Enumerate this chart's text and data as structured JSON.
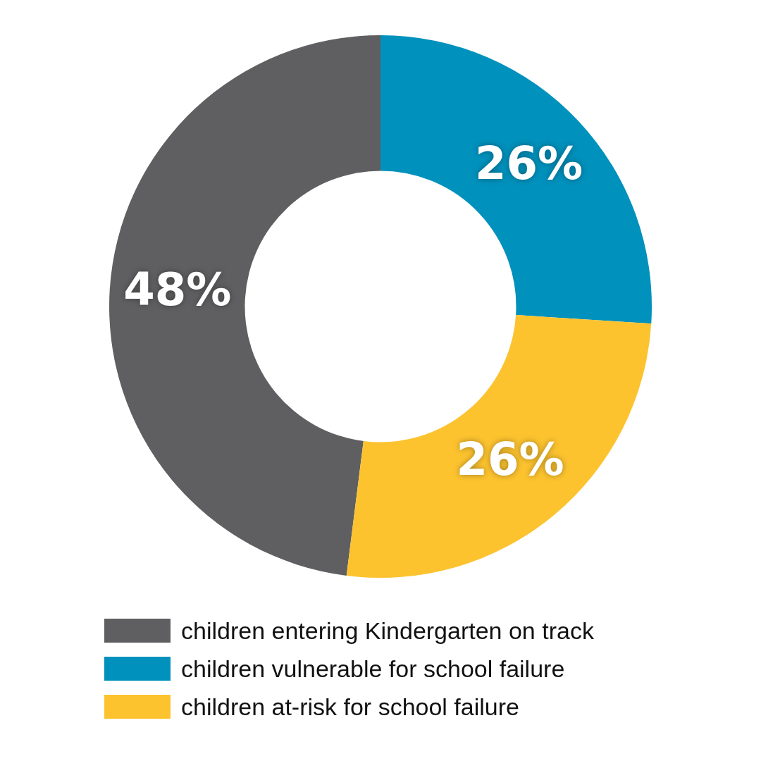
{
  "chart_data": {
    "type": "donut",
    "categories": [
      "children entering Kindergarten on track",
      "children vulnerable for school failure",
      "children at-risk for school failure"
    ],
    "values": [
      48,
      26,
      26
    ],
    "colors": [
      "#5f5f61",
      "#0091bc",
      "#fcc32f"
    ],
    "value_labels": [
      "48%",
      "26%",
      "26%"
    ],
    "legend": "bottom"
  }
}
